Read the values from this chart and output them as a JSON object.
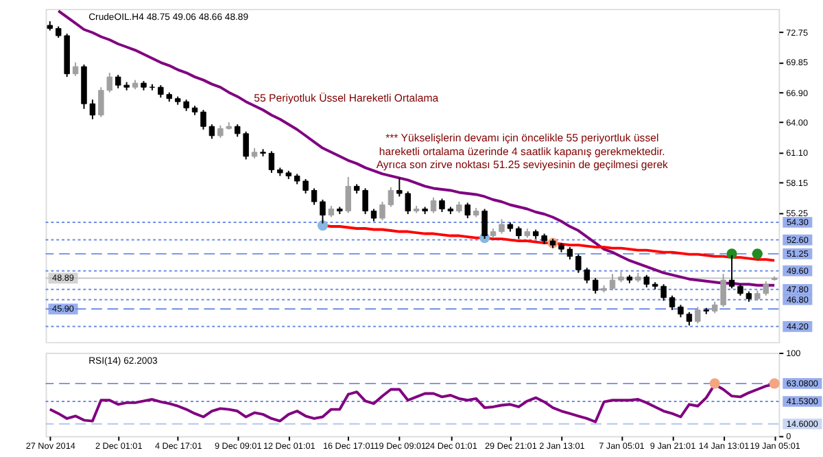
{
  "chart_data": [
    {
      "type": "candlestick",
      "title": "CrudeOIL.H4 48.75 49.06 48.66 48.89",
      "categories": [
        null,
        null,
        null,
        null,
        null,
        null,
        null,
        null,
        null,
        null,
        null,
        null,
        null,
        null,
        null,
        null,
        null,
        null,
        null,
        null,
        null,
        null,
        null,
        null,
        null,
        null,
        null,
        null,
        null,
        null,
        null,
        null,
        null,
        null,
        null,
        null,
        null,
        null,
        null,
        null,
        null,
        null,
        null,
        null,
        null,
        null,
        null,
        null,
        null,
        null,
        null,
        null,
        null,
        null,
        null,
        null,
        null,
        null,
        null,
        null,
        null,
        null,
        null,
        null,
        null,
        null,
        null,
        null,
        null,
        null,
        null,
        null,
        null,
        null,
        null,
        null,
        null,
        null,
        null,
        null,
        null,
        null,
        null,
        null,
        null,
        null
      ],
      "ohlc": [
        [
          73.4,
          73.8,
          72.9,
          73.1
        ],
        [
          73.1,
          73.3,
          72.2,
          72.4
        ],
        [
          72.4,
          72.6,
          68.4,
          68.7
        ],
        [
          68.7,
          69.8,
          68.5,
          69.4
        ],
        [
          69.4,
          69.6,
          65.3,
          65.8
        ],
        [
          65.8,
          66.2,
          64.3,
          64.7
        ],
        [
          64.7,
          67.4,
          64.5,
          67.1
        ],
        [
          67.1,
          68.8,
          66.9,
          68.4
        ],
        [
          68.4,
          68.6,
          67.3,
          67.6
        ],
        [
          67.6,
          67.9,
          67.1,
          67.4
        ],
        [
          67.4,
          68.1,
          67.2,
          67.8
        ],
        [
          67.8,
          68.0,
          67.1,
          67.4
        ],
        [
          67.4,
          67.7,
          67.1,
          67.4
        ],
        [
          67.4,
          67.6,
          66.4,
          66.7
        ],
        [
          66.7,
          66.9,
          66.0,
          66.3
        ],
        [
          66.3,
          66.5,
          65.7,
          66.0
        ],
        [
          66.0,
          66.2,
          65.1,
          65.4
        ],
        [
          65.4,
          65.6,
          64.7,
          65.0
        ],
        [
          65.0,
          65.2,
          63.3,
          63.6
        ],
        [
          63.6,
          63.8,
          62.4,
          62.7
        ],
        [
          62.7,
          63.7,
          62.5,
          63.4
        ],
        [
          63.4,
          64.0,
          63.3,
          63.6
        ],
        [
          63.6,
          63.8,
          62.6,
          62.9
        ],
        [
          62.9,
          63.1,
          60.4,
          60.7
        ],
        [
          60.7,
          61.5,
          60.5,
          61.1
        ],
        [
          61.1,
          61.4,
          60.7,
          61.0
        ],
        [
          61.0,
          61.2,
          59.1,
          59.4
        ],
        [
          59.4,
          59.6,
          58.8,
          59.1
        ],
        [
          59.1,
          59.3,
          58.5,
          58.8
        ],
        [
          58.8,
          59.0,
          58.0,
          58.3
        ],
        [
          58.3,
          58.5,
          57.1,
          57.4
        ],
        [
          57.4,
          57.6,
          56.0,
          56.3
        ],
        [
          56.3,
          56.5,
          54.2,
          55.0
        ],
        [
          55.0,
          55.9,
          54.8,
          55.6
        ],
        [
          55.6,
          55.8,
          55.1,
          55.4
        ],
        [
          55.4,
          58.7,
          55.2,
          57.8
        ],
        [
          57.8,
          58.0,
          57.1,
          57.4
        ],
        [
          57.4,
          57.6,
          55.1,
          55.4
        ],
        [
          55.4,
          55.6,
          54.4,
          54.7
        ],
        [
          54.7,
          56.3,
          54.5,
          56.0
        ],
        [
          56.0,
          57.7,
          55.8,
          57.4
        ],
        [
          57.4,
          58.6,
          56.8,
          57.1
        ],
        [
          57.1,
          57.3,
          55.1,
          55.4
        ],
        [
          55.4,
          55.9,
          55.2,
          55.6
        ],
        [
          55.6,
          55.8,
          55.1,
          55.4
        ],
        [
          55.4,
          56.7,
          55.2,
          56.4
        ],
        [
          56.4,
          56.6,
          55.3,
          55.6
        ],
        [
          55.6,
          55.8,
          55.1,
          55.4
        ],
        [
          55.4,
          56.3,
          55.2,
          56.0
        ],
        [
          56.0,
          56.2,
          54.7,
          55.0
        ],
        [
          55.0,
          55.7,
          54.8,
          55.4
        ],
        [
          55.4,
          55.6,
          52.7,
          53.0
        ],
        [
          53.0,
          53.7,
          52.8,
          53.4
        ],
        [
          53.4,
          54.6,
          53.2,
          54.1
        ],
        [
          54.1,
          54.3,
          53.4,
          53.7
        ],
        [
          53.7,
          53.9,
          52.7,
          53.0
        ],
        [
          53.0,
          53.7,
          52.8,
          53.4
        ],
        [
          53.4,
          53.6,
          52.7,
          53.0
        ],
        [
          53.0,
          53.2,
          52.2,
          52.5
        ],
        [
          52.5,
          52.7,
          51.8,
          52.1
        ],
        [
          52.1,
          52.3,
          51.4,
          51.7
        ],
        [
          51.7,
          51.9,
          50.7,
          51.0
        ],
        [
          51.0,
          51.2,
          49.4,
          49.7
        ],
        [
          49.7,
          49.9,
          48.4,
          48.7
        ],
        [
          48.7,
          48.9,
          47.4,
          47.7
        ],
        [
          47.7,
          48.2,
          47.5,
          47.9
        ],
        [
          47.9,
          49.3,
          47.7,
          48.7
        ],
        [
          48.7,
          49.5,
          48.5,
          49.0
        ],
        [
          49.0,
          49.2,
          48.4,
          48.7
        ],
        [
          48.7,
          49.4,
          48.5,
          49.0
        ],
        [
          49.0,
          49.2,
          48.0,
          48.3
        ],
        [
          48.3,
          48.5,
          47.8,
          48.1
        ],
        [
          48.1,
          48.3,
          46.7,
          47.0
        ],
        [
          47.0,
          47.2,
          45.8,
          46.1
        ],
        [
          46.1,
          46.3,
          45.1,
          45.4
        ],
        [
          45.4,
          45.6,
          44.3,
          44.7
        ],
        [
          44.7,
          46.1,
          44.5,
          45.8
        ],
        [
          45.8,
          46.0,
          45.4,
          45.7
        ],
        [
          45.7,
          46.6,
          45.5,
          46.3
        ],
        [
          46.3,
          49.3,
          46.1,
          48.7
        ],
        [
          48.7,
          51.1,
          47.9,
          48.1
        ],
        [
          48.1,
          48.3,
          47.2,
          47.4
        ],
        [
          47.4,
          47.6,
          46.6,
          46.9
        ],
        [
          46.9,
          47.7,
          46.7,
          47.4
        ],
        [
          47.4,
          48.6,
          47.2,
          48.3
        ],
        [
          48.75,
          49.06,
          48.66,
          48.89
        ]
      ],
      "colors": [
        "#000000",
        "#000000",
        "#000000",
        "#a0a0a0",
        "#000000",
        "#000000",
        "#a0a0a0",
        "#a0a0a0",
        "#000000",
        "#000000",
        "#a0a0a0",
        "#000000",
        "#000000",
        "#000000",
        "#000000",
        "#000000",
        "#000000",
        "#000000",
        "#000000",
        "#000000",
        "#a0a0a0",
        "#a0a0a0",
        "#000000",
        "#000000",
        "#a0a0a0",
        "#000000",
        "#000000",
        "#000000",
        "#000000",
        "#000000",
        "#000000",
        "#000000",
        "#000000",
        "#a0a0a0",
        "#000000",
        "#a0a0a0",
        "#000000",
        "#000000",
        "#000000",
        "#a0a0a0",
        "#a0a0a0",
        "#000000",
        "#000000",
        "#a0a0a0",
        "#000000",
        "#a0a0a0",
        "#000000",
        "#000000",
        "#a0a0a0",
        "#000000",
        "#a0a0a0",
        "#000000",
        "#a0a0a0",
        "#a0a0a0",
        "#000000",
        "#000000",
        "#a0a0a0",
        "#000000",
        "#000000",
        "#000000",
        "#000000",
        "#000000",
        "#000000",
        "#000000",
        "#000000",
        "#a0a0a0",
        "#a0a0a0",
        "#a0a0a0",
        "#000000",
        "#a0a0a0",
        "#000000",
        "#000000",
        "#000000",
        "#000000",
        "#000000",
        "#000000",
        "#a0a0a0",
        "#000000",
        "#a0a0a0",
        "#a0a0a0",
        "#000000",
        "#000000",
        "#000000",
        "#a0a0a0",
        "#a0a0a0",
        "#a0a0a0"
      ],
      "series": [
        {
          "type": "line",
          "color": "#800080",
          "values": [
            null,
            74.8,
            74.2,
            73.6,
            73.0,
            72.7,
            72.3,
            72.0,
            71.6,
            71.3,
            71.0,
            70.6,
            70.2,
            69.8,
            69.5,
            69.1,
            68.8,
            68.4,
            68.1,
            67.7,
            67.4,
            66.9,
            66.5,
            66.0,
            65.6,
            65.2,
            64.7,
            64.3,
            63.8,
            63.3,
            62.7,
            62.1,
            61.5,
            61.1,
            60.7,
            60.3,
            60.0,
            59.6,
            59.3,
            59.0,
            58.8,
            58.6,
            58.4,
            58.1,
            57.8,
            57.6,
            57.5,
            57.4,
            57.2,
            57.1,
            57.0,
            56.8,
            56.5,
            56.3,
            56.0,
            55.8,
            55.6,
            55.3,
            55.1,
            54.8,
            54.4,
            53.9,
            53.5,
            52.9,
            52.3,
            51.7,
            51.4,
            51.0,
            50.6,
            50.3,
            50.0,
            49.7,
            49.4,
            49.2,
            49.0,
            48.8,
            48.7,
            48.6,
            48.5,
            48.4,
            48.4,
            48.3,
            48.3,
            48.2,
            48.2,
            48.2
          ]
        },
        {
          "type": "line",
          "color": "#ff0000",
          "values": [
            null,
            null,
            null,
            null,
            null,
            null,
            null,
            null,
            null,
            null,
            null,
            null,
            null,
            null,
            null,
            null,
            null,
            null,
            null,
            null,
            null,
            null,
            null,
            null,
            null,
            null,
            null,
            null,
            null,
            null,
            null,
            null,
            54.0,
            53.9,
            53.9,
            53.8,
            53.7,
            53.7,
            53.6,
            53.6,
            53.5,
            53.4,
            53.4,
            53.3,
            53.2,
            53.2,
            53.1,
            53.0,
            53.0,
            52.9,
            52.8,
            52.8,
            52.7,
            52.7,
            52.6,
            52.5,
            52.5,
            52.4,
            52.3,
            52.3,
            52.2,
            52.1,
            52.1,
            52.0,
            51.9,
            51.9,
            51.8,
            51.8,
            51.7,
            51.6,
            51.6,
            51.5,
            51.4,
            51.4,
            51.3,
            51.2,
            51.2,
            51.1,
            51.0,
            51.0,
            50.9,
            50.9,
            50.8,
            50.7,
            50.7,
            50.6
          ]
        },
        {
          "type": "scatter",
          "marker": "circle",
          "color": "#87b8e0",
          "values": [
            null,
            null,
            null,
            null,
            null,
            null,
            null,
            null,
            null,
            null,
            null,
            null,
            null,
            null,
            null,
            null,
            null,
            null,
            null,
            null,
            null,
            null,
            null,
            null,
            null,
            null,
            null,
            null,
            null,
            null,
            null,
            null,
            54.0,
            null,
            null,
            null,
            null,
            null,
            null,
            null,
            null,
            null,
            null,
            null,
            null,
            null,
            null,
            null,
            null,
            null,
            null,
            52.8,
            null,
            null,
            null,
            null,
            null,
            null,
            null,
            null,
            null,
            null,
            null,
            null,
            null,
            null,
            null,
            null,
            null,
            null,
            null,
            null,
            null,
            null,
            null,
            null,
            null,
            null,
            null,
            null,
            null,
            null,
            null,
            null,
            null,
            null
          ]
        },
        {
          "type": "scatter",
          "marker": "circle",
          "color": "#f4a582",
          "values": [
            null,
            null,
            null,
            null,
            null,
            null,
            null,
            null,
            null,
            null,
            null,
            null,
            null,
            null,
            null,
            null,
            null,
            null,
            null,
            null,
            null,
            null,
            null,
            null,
            null,
            null,
            null,
            null,
            null,
            null,
            null,
            null,
            null,
            null,
            null,
            null,
            null,
            null,
            null,
            null,
            null,
            null,
            null,
            null,
            null,
            null,
            null,
            null,
            null,
            null,
            null,
            null,
            null,
            null,
            null,
            null,
            null,
            null,
            null,
            52.3,
            null,
            null,
            null,
            null,
            null,
            null,
            null,
            null,
            null,
            null,
            null,
            null,
            null,
            null,
            null,
            null,
            null,
            null,
            null,
            null,
            null,
            null,
            null,
            null,
            null,
            null
          ]
        },
        {
          "type": "scatter",
          "marker": "circle",
          "color": "#228b22",
          "values": [
            null,
            null,
            null,
            null,
            null,
            null,
            null,
            null,
            null,
            null,
            null,
            null,
            null,
            null,
            null,
            null,
            null,
            null,
            null,
            null,
            null,
            null,
            null,
            null,
            null,
            null,
            null,
            null,
            null,
            null,
            null,
            null,
            null,
            null,
            null,
            null,
            null,
            null,
            null,
            null,
            null,
            null,
            null,
            null,
            null,
            null,
            null,
            null,
            null,
            null,
            null,
            null,
            null,
            null,
            null,
            null,
            null,
            null,
            null,
            null,
            null,
            null,
            null,
            null,
            null,
            null,
            null,
            null,
            null,
            null,
            null,
            null,
            null,
            null,
            null,
            null,
            null,
            null,
            null,
            null,
            51.25,
            null,
            null,
            51.25,
            null,
            null
          ]
        }
      ],
      "ylim": [
        42.7,
        75.0
      ],
      "yticks": [
        72.75,
        {
          "value": 69.85,
          "label": "69.85"
        },
        {
          "value": 66.9,
          "label": "66.90"
        },
        {
          "value": 64.0,
          "label": "64.00"
        },
        {
          "value": 61.1,
          "label": "61.10"
        },
        58.15,
        55.25
      ],
      "tick_labels": "y",
      "ref_lines": [
        {
          "axis": "y",
          "value": 54.3,
          "label": "54.30",
          "color": "#6c8ce6",
          "line_style": "dotted"
        },
        {
          "axis": "y",
          "value": 52.6,
          "label": "52.60",
          "color": "#6c8ce6",
          "line_style": "dotted"
        },
        {
          "axis": "y",
          "value": 51.25,
          "label": "51.25",
          "color": "#6c8ce6",
          "line_style": "dashed"
        },
        {
          "axis": "y",
          "value": 49.6,
          "label": "49.60",
          "color": "#6c8ce6",
          "line_style": "dotted"
        },
        {
          "axis": "y",
          "value": 48.89,
          "label": "48.89",
          "color": "#c0c0c0",
          "line_style": "solid"
        },
        {
          "axis": "y",
          "value": 47.8,
          "label": "47.80",
          "color": "#6c8ce6",
          "line_style": "dotted"
        },
        {
          "axis": "y",
          "value": 46.8,
          "label": "46.80",
          "color": "#6c8ce6",
          "line_style": "dotted"
        },
        {
          "axis": "y",
          "value": 45.9,
          "label": "45.90",
          "color": "#6c8ce6",
          "line_style": "dashed"
        },
        {
          "axis": "y",
          "value": 44.2,
          "label": "44.20",
          "color": "#6c8ce6",
          "line_style": "dotted"
        }
      ],
      "annotations": [
        "55 Periyotluk Üssel Hareketli Ortalama",
        "*** Yükselişlerin devamı için öncelikle 55 periyortluk üssel\nhareketli ortalama üzerinde 4 saatlik kapanış gerekmektedir.\nAyrıca son zirve noktası 51.25 seviyesinin de geçilmesi gerek"
      ]
    },
    {
      "type": "line",
      "title": "RSI(14) 62.2003",
      "categories": [
        "27 Nov 2014",
        null,
        null,
        null,
        null,
        null,
        null,
        null,
        "2 Dec 01:01",
        null,
        null,
        null,
        null,
        null,
        null,
        "4 Dec 17:01",
        null,
        null,
        null,
        null,
        null,
        null,
        "9 Dec 09:01",
        null,
        null,
        null,
        null,
        null,
        "12 Dec 01:01",
        null,
        null,
        null,
        null,
        null,
        null,
        "16 Dec 17:01",
        null,
        null,
        null,
        null,
        null,
        "19 Dec 09:01",
        null,
        null,
        null,
        null,
        null,
        "24 Dec 01:01",
        null,
        null,
        null,
        null,
        null,
        null,
        "29 Dec 21:01",
        null,
        null,
        null,
        null,
        null,
        "2 Jan 13:01",
        null,
        null,
        null,
        null,
        null,
        null,
        "7 Jan 05:01",
        null,
        null,
        null,
        null,
        null,
        "9 Jan 21:01",
        null,
        null,
        null,
        null,
        null,
        "14 Jan 13:01",
        null,
        null,
        null,
        null,
        null,
        "19 Jan 05:01"
      ],
      "series": [
        {
          "color": "#800080",
          "values": [
            32,
            27,
            21,
            24,
            19,
            18,
            43,
            43,
            38,
            40,
            40,
            42,
            44,
            41,
            39,
            36,
            32,
            27,
            23,
            30,
            33,
            32,
            30,
            23,
            28,
            26,
            21,
            18,
            26,
            30,
            24,
            21,
            23,
            32,
            32,
            50,
            53,
            42,
            39,
            48,
            56,
            56,
            43,
            47,
            51,
            51,
            47,
            49,
            45,
            43,
            45,
            34,
            35,
            37,
            38,
            35,
            42,
            46,
            41,
            34,
            30,
            27,
            24,
            21,
            17,
            41,
            43,
            43,
            43,
            44,
            40,
            35,
            30,
            27,
            23,
            38,
            36,
            46,
            62,
            56,
            48,
            47,
            52,
            56,
            60,
            62.2
          ]
        },
        {
          "type": "scatter",
          "marker": "circle",
          "color": "#f4a582",
          "values": [
            null,
            null,
            null,
            null,
            null,
            null,
            null,
            null,
            null,
            null,
            null,
            null,
            null,
            null,
            null,
            null,
            null,
            null,
            null,
            null,
            null,
            null,
            null,
            null,
            null,
            null,
            null,
            null,
            null,
            null,
            null,
            null,
            null,
            null,
            null,
            null,
            null,
            null,
            null,
            null,
            null,
            null,
            null,
            null,
            null,
            null,
            null,
            null,
            null,
            null,
            null,
            null,
            null,
            null,
            null,
            null,
            null,
            null,
            null,
            null,
            null,
            null,
            null,
            null,
            null,
            null,
            null,
            null,
            null,
            null,
            null,
            null,
            null,
            null,
            null,
            null,
            null,
            null,
            63.08,
            null,
            null,
            null,
            null,
            null,
            null,
            63.08
          ]
        }
      ],
      "ylim": [
        0,
        100
      ],
      "yticks": [
        0,
        100
      ],
      "ref_lines": [
        {
          "axis": "y",
          "value": 63.08,
          "label": "63.0800",
          "color": "#6c8ce6",
          "line_style": "dashed"
        },
        {
          "axis": "y",
          "value": 41.53,
          "label": "41.5300",
          "color": "#6c8ce6",
          "line_style": "dotted"
        },
        {
          "axis": "y",
          "value": 14.6,
          "label": "14.6000",
          "color": "#b4c6f0",
          "line_style": "dashed"
        }
      ]
    }
  ]
}
